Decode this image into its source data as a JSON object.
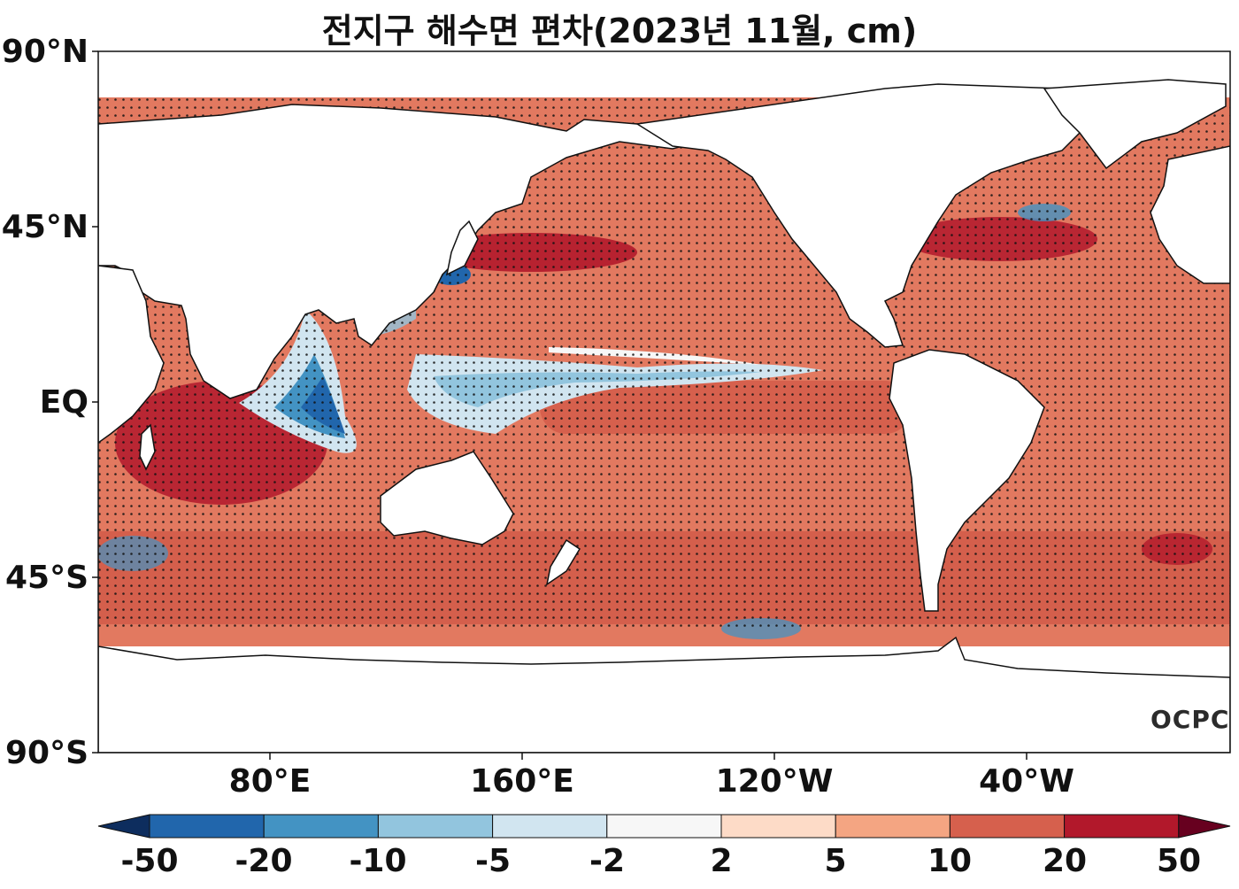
{
  "title": "전지구 해수면 편차(2023년 11월, cm)",
  "lat_labels": [
    "90°N",
    "45°N",
    "EQ",
    "45°S",
    "90°S"
  ],
  "lon_labels": [
    "80°E",
    "160°E",
    "120°W",
    "40°W"
  ],
  "logo": "OCPC",
  "colorbar": {
    "ticks": [
      "-50",
      "-20",
      "-10",
      "-5",
      "-2",
      "2",
      "5",
      "10",
      "20",
      "50"
    ],
    "colors": [
      "#0d2d5e",
      "#2166ac",
      "#4393c3",
      "#92c5de",
      "#d1e5f0",
      "#f7f7f7",
      "#fddbc7",
      "#f4a582",
      "#d6604d",
      "#b2182b",
      "#67001f"
    ]
  }
}
